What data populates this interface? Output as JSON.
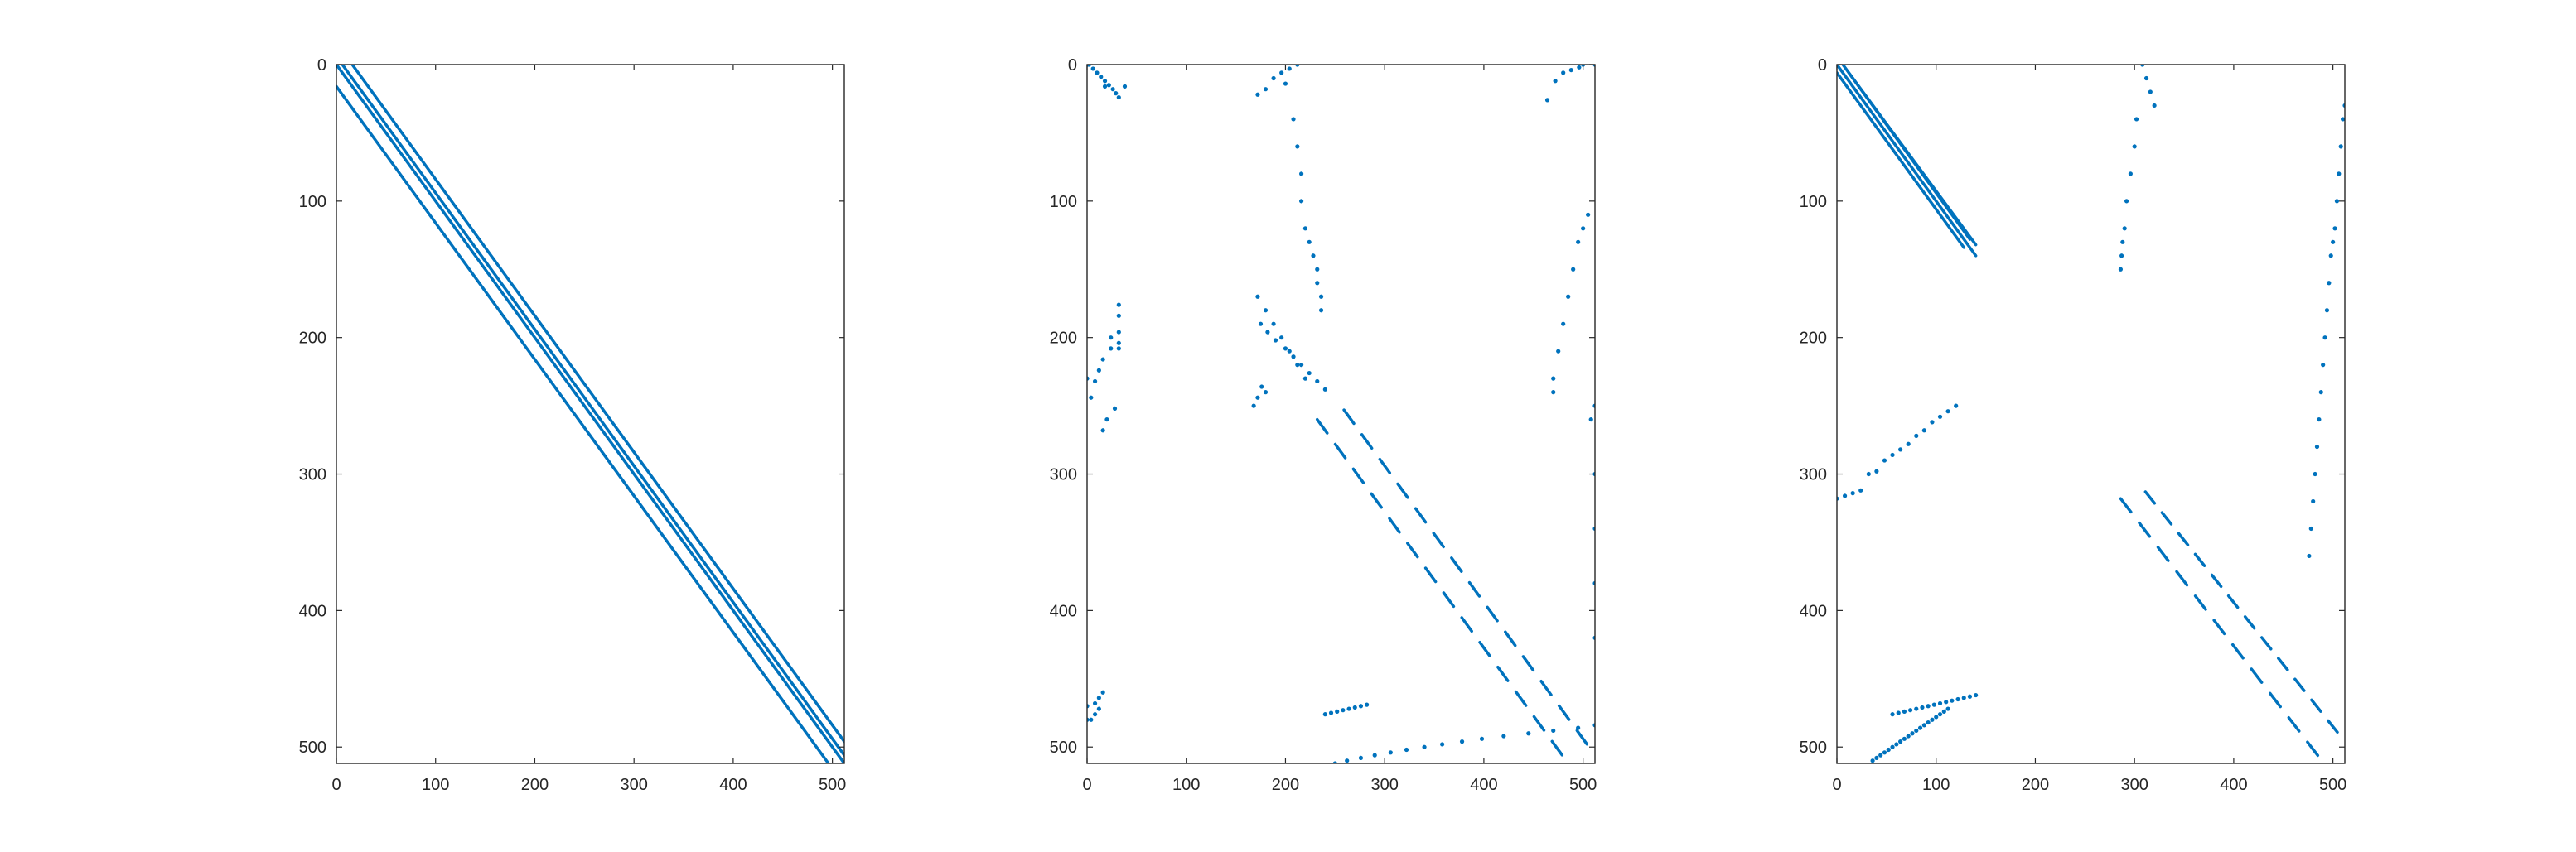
{
  "figure": {
    "background": "#ffffff",
    "axis_color": "#262626",
    "mark_color": "#0072BD"
  },
  "chart_data": [
    {
      "type": "spy",
      "title": "",
      "xlabel": "",
      "ylabel": "",
      "xlim": [
        0,
        512
      ],
      "ylim": [
        512,
        0
      ],
      "y_reversed": true,
      "xticks": [
        0,
        100,
        200,
        300,
        400,
        500
      ],
      "yticks": [
        0,
        100,
        200,
        300,
        400,
        500
      ],
      "xtick_labels": [
        "0",
        "100",
        "200",
        "300",
        "400",
        "500"
      ],
      "ytick_labels": [
        "0",
        "100",
        "200",
        "300",
        "400",
        "500"
      ],
      "grid": false,
      "lines": [
        {
          "x": [
            0,
            512
          ],
          "y": [
            0,
            512
          ]
        },
        {
          "x": [
            6,
            512
          ],
          "y": [
            0,
            506
          ]
        },
        {
          "x": [
            16,
            512
          ],
          "y": [
            0,
            496
          ]
        },
        {
          "x": [
            0,
            496
          ],
          "y": [
            16,
            512
          ]
        }
      ],
      "segments": [],
      "points": []
    },
    {
      "type": "spy",
      "title": "",
      "xlabel": "",
      "ylabel": "",
      "xlim": [
        0,
        512
      ],
      "ylim": [
        512,
        0
      ],
      "y_reversed": true,
      "xticks": [
        0,
        100,
        200,
        300,
        400,
        500
      ],
      "yticks": [
        0,
        100,
        200,
        300,
        400,
        500
      ],
      "xtick_labels": [
        "0",
        "100",
        "200",
        "300",
        "400",
        "500"
      ],
      "ytick_labels": [
        "0",
        "100",
        "200",
        "300",
        "400",
        "500"
      ],
      "grid": false,
      "lines": [],
      "segments": [
        {
          "x": [
            259,
            512
          ],
          "y": [
            253,
            506
          ],
          "n": 14
        },
        {
          "x": [
            232,
            487
          ],
          "y": [
            260,
            514
          ],
          "n": 14
        }
      ],
      "points": [
        {
          "x": [
            0,
            18,
            38,
            0,
            0,
            0,
            2,
            6,
            10,
            14,
            18,
            22,
            26,
            29,
            32,
            32,
            32,
            32,
            32
          ],
          "y": [
            0,
            16,
            16,
            230,
            470,
            480,
            0,
            3,
            6,
            9,
            12,
            15,
            18,
            21,
            24,
            176,
            184,
            196,
            208
          ]
        },
        {
          "x": [
            24,
            32,
            24,
            16,
            12,
            8,
            4,
            28,
            20,
            16,
            12,
            8,
            4,
            8,
            12,
            16
          ],
          "y": [
            200,
            204,
            208,
            216,
            224,
            232,
            244,
            252,
            260,
            268,
            472,
            476,
            480,
            468,
            464,
            460
          ]
        },
        {
          "x": [
            180,
            188,
            196,
            204,
            212,
            172,
            200,
            208,
            212,
            216,
            216,
            220,
            224,
            228,
            232,
            232,
            236,
            236
          ],
          "y": [
            18,
            10,
            6,
            3,
            0,
            22,
            14,
            40,
            60,
            80,
            100,
            120,
            130,
            140,
            150,
            160,
            170,
            180
          ]
        },
        {
          "x": [
            464,
            472,
            480,
            488,
            496,
            500,
            512,
            512,
            470,
            470,
            475,
            480,
            485,
            490,
            495,
            500,
            505,
            508,
            512,
            512,
            512,
            512
          ],
          "y": [
            26,
            12,
            6,
            4,
            2,
            0,
            0,
            250,
            240,
            230,
            210,
            190,
            170,
            150,
            130,
            120,
            110,
            260,
            300,
            340,
            380,
            420
          ]
        },
        {
          "x": [
            172,
            180,
            188,
            196,
            204,
            212,
            220,
            180,
            176,
            172,
            168,
            175,
            182,
            190,
            200,
            208,
            216,
            224,
            232,
            240
          ],
          "y": [
            170,
            180,
            190,
            200,
            210,
            220,
            230,
            240,
            236,
            244,
            250,
            190,
            196,
            202,
            208,
            214,
            220,
            226,
            232,
            238
          ]
        },
        {
          "x": [
            240,
            250,
            262,
            276,
            290,
            306,
            322,
            340,
            358,
            378,
            398,
            420,
            445,
            470,
            495,
            512,
            240,
            246,
            252,
            258,
            264,
            270,
            276,
            282
          ],
          "y": [
            514,
            512,
            510,
            508,
            506,
            504,
            502,
            500,
            498,
            496,
            494,
            492,
            490,
            488,
            486,
            484,
            476,
            475,
            474,
            473,
            472,
            471,
            470,
            469
          ]
        }
      ]
    },
    {
      "type": "spy",
      "title": "",
      "xlabel": "",
      "ylabel": "",
      "xlim": [
        0,
        512
      ],
      "ylim": [
        512,
        0
      ],
      "y_reversed": true,
      "xticks": [
        0,
        100,
        200,
        300,
        400,
        500
      ],
      "yticks": [
        0,
        100,
        200,
        300,
        400,
        500
      ],
      "xtick_labels": [
        "0",
        "100",
        "200",
        "300",
        "400",
        "500"
      ],
      "ytick_labels": [
        "0",
        "100",
        "200",
        "300",
        "400",
        "500"
      ],
      "grid": false,
      "lines": [
        {
          "x": [
            0,
            140
          ],
          "y": [
            0,
            140
          ]
        },
        {
          "x": [
            6,
            134
          ],
          "y": [
            0,
            128
          ]
        },
        {
          "x": [
            0,
            128
          ],
          "y": [
            6,
            134
          ]
        },
        {
          "x": [
            12,
            140
          ],
          "y": [
            6,
            132
          ]
        }
      ],
      "segments": [
        {
          "x": [
            311,
            512
          ],
          "y": [
            313,
            496
          ],
          "n": 12
        },
        {
          "x": [
            286,
            512
          ],
          "y": [
            318,
            532
          ],
          "n": 12
        }
      ],
      "points": [
        {
          "x": [
            308,
            312,
            316,
            320,
            302,
            300,
            296,
            292,
            290,
            288,
            287,
            286
          ],
          "y": [
            0,
            10,
            20,
            30,
            40,
            60,
            80,
            100,
            120,
            130,
            140,
            150
          ]
        },
        {
          "x": [
            512,
            510,
            508,
            506,
            504,
            502,
            500,
            498,
            496,
            494,
            492,
            490,
            488,
            486,
            484,
            482,
            480,
            478,
            476
          ],
          "y": [
            30,
            40,
            60,
            80,
            100,
            120,
            130,
            140,
            160,
            180,
            200,
            220,
            240,
            260,
            280,
            300,
            320,
            340,
            360
          ]
        },
        {
          "x": [
            0,
            8,
            16,
            24,
            32,
            40,
            48,
            56,
            64,
            72,
            80,
            88,
            96,
            104,
            112,
            120
          ],
          "y": [
            318,
            316,
            314,
            312,
            300,
            298,
            290,
            286,
            282,
            278,
            272,
            268,
            262,
            258,
            254,
            250
          ]
        },
        {
          "x": [
            36,
            40,
            44,
            48,
            52,
            56,
            60,
            64,
            68,
            72,
            76,
            80,
            84,
            88,
            92,
            96,
            100,
            104,
            108,
            112
          ],
          "y": [
            510,
            508,
            506,
            504,
            502,
            500,
            498,
            496,
            494,
            492,
            490,
            488,
            486,
            484,
            482,
            480,
            478,
            476,
            474,
            472
          ]
        },
        {
          "x": [
            56,
            62,
            68,
            74,
            80,
            86,
            92,
            98,
            104,
            110,
            116,
            122,
            128,
            134,
            140
          ],
          "y": [
            476,
            475,
            474,
            473,
            472,
            471,
            470,
            469,
            468,
            467,
            466,
            465,
            464,
            463,
            462
          ]
        }
      ]
    }
  ]
}
